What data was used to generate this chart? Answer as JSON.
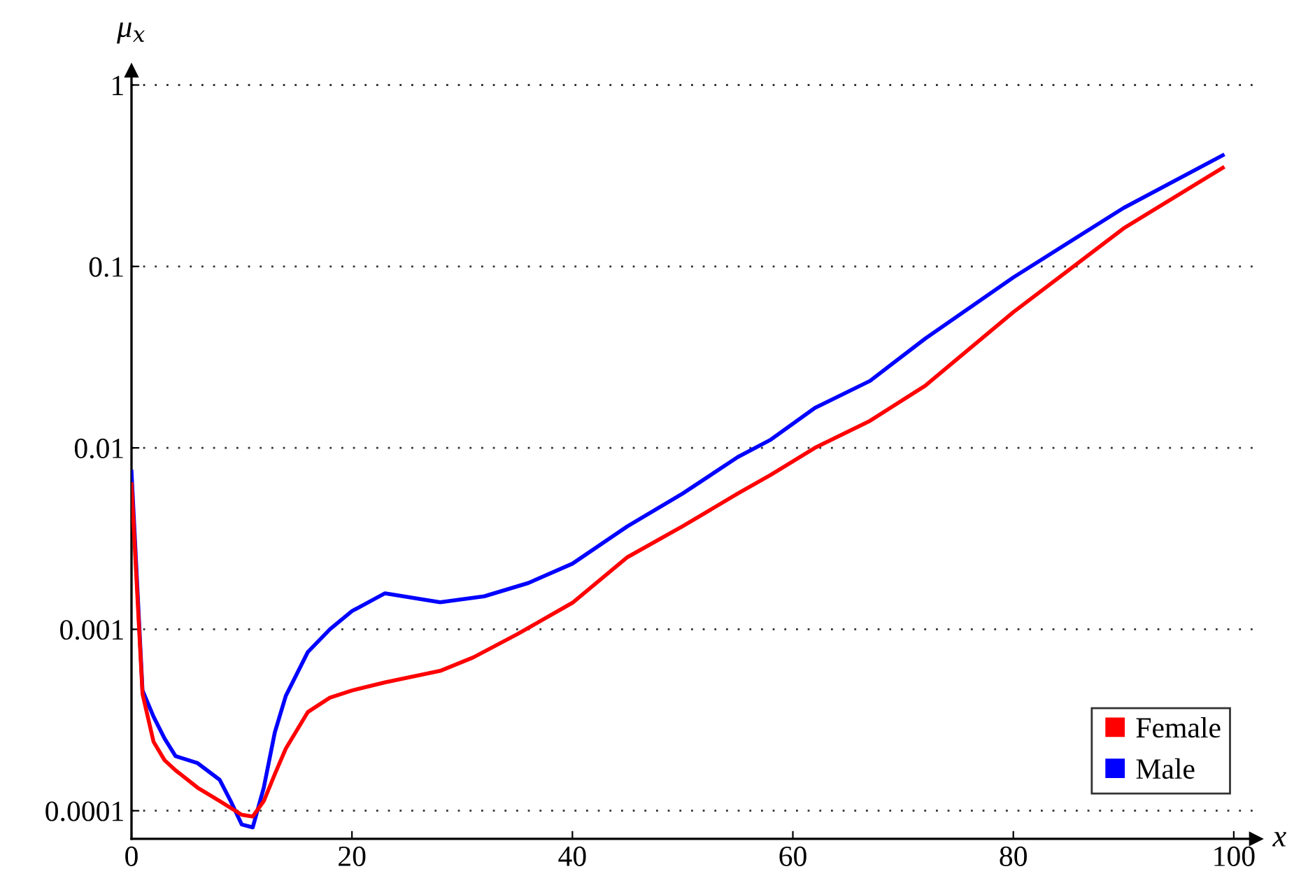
{
  "chart_data": {
    "type": "line",
    "xlabel": "x",
    "ylabel": "μ$_{x}$",
    "log": "y",
    "xlim": [
      0,
      102
    ],
    "ylim": [
      7e-05,
      1.2
    ],
    "xticks": [
      0,
      20,
      40,
      60,
      80,
      100
    ],
    "yticks": [
      0.0001,
      0.001,
      0.01,
      0.1,
      1
    ],
    "grid": "y",
    "legend": "bottom right",
    "line_style": "solid",
    "series": [
      {
        "name": "Female",
        "color": "#ff0000",
        "x": [
          0,
          1,
          2,
          3,
          4,
          6,
          8,
          10,
          11,
          12,
          13,
          14,
          16,
          18,
          20,
          23,
          28,
          31,
          35,
          40,
          45,
          50,
          55,
          58,
          62,
          67,
          72,
          80,
          90,
          99
        ],
        "values": [
          0.0063,
          0.00044,
          0.00024,
          0.00019,
          0.000167,
          0.000134,
          0.000113,
          9.5e-05,
          9.3e-05,
          0.000113,
          0.000159,
          0.00022,
          0.00035,
          0.00042,
          0.00046,
          0.00051,
          0.00059,
          0.0007,
          0.00094,
          0.0014,
          0.0025,
          0.0037,
          0.0056,
          0.0071,
          0.01,
          0.0141,
          0.022,
          0.056,
          0.162,
          0.35
        ]
      },
      {
        "name": "Male",
        "color": "#0000ff",
        "x": [
          0,
          1,
          2,
          3,
          4,
          6,
          8,
          9,
          10,
          11,
          12,
          13,
          14,
          16,
          18,
          20,
          23,
          28,
          32,
          36,
          40,
          45,
          50,
          55,
          58,
          62,
          67,
          72,
          80,
          90,
          99
        ],
        "values": [
          0.0074,
          0.00046,
          0.00033,
          0.00025,
          0.0002,
          0.000183,
          0.000148,
          0.000113,
          8.4e-05,
          8.1e-05,
          0.000134,
          0.00027,
          0.00043,
          0.00075,
          0.001,
          0.00126,
          0.00158,
          0.00141,
          0.00152,
          0.0018,
          0.0023,
          0.0037,
          0.0056,
          0.0089,
          0.0111,
          0.0166,
          0.0234,
          0.04,
          0.087,
          0.21,
          0.41
        ]
      }
    ]
  }
}
